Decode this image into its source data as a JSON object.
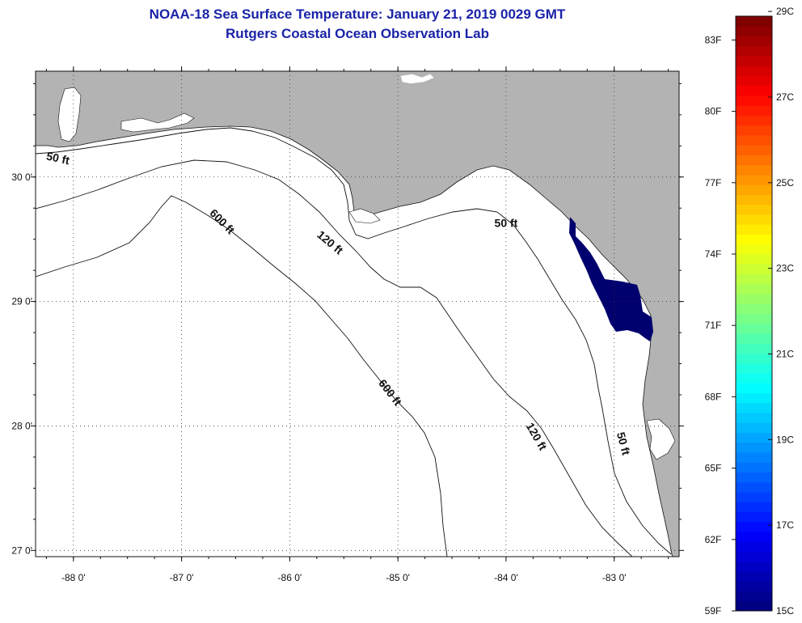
{
  "title": {
    "line1": "NOAA-18 Sea Surface Temperature:  January 21, 2019 0029 GMT",
    "line2": "Rutgers Coastal Ocean Observation Lab"
  },
  "map": {
    "lon_range": [
      -88.35,
      -82.4
    ],
    "lat_range": [
      26.95,
      30.85
    ],
    "lon_ticks": [
      {
        "value": -88,
        "label": "-88 0'"
      },
      {
        "value": -87,
        "label": "-87 0'"
      },
      {
        "value": -86,
        "label": "-86 0'"
      },
      {
        "value": -85,
        "label": "-85 0'"
      },
      {
        "value": -84,
        "label": "-84 0'"
      },
      {
        "value": -83,
        "label": "-83 0'"
      }
    ],
    "lat_ticks": [
      {
        "value": 30,
        "label": "30 0'"
      },
      {
        "value": 29,
        "label": "29 0'"
      },
      {
        "value": 28,
        "label": "28 0'"
      },
      {
        "value": 27,
        "label": "27 0'"
      }
    ],
    "grid": "dotted",
    "land_color": "#b3b3b3",
    "sst_patch_color": "#00006e",
    "contour_labels": [
      {
        "text": "50 ft",
        "lon": -88.15,
        "lat": 30.12
      },
      {
        "text": "600 ft",
        "lon": -86.65,
        "lat": 29.62
      },
      {
        "text": "120 ft",
        "lon": -85.65,
        "lat": 29.45
      },
      {
        "text": "50 ft",
        "lon": -84.0,
        "lat": 29.6
      },
      {
        "text": "600 ft",
        "lon": -85.1,
        "lat": 28.25
      },
      {
        "text": "120 ft",
        "lon": -83.75,
        "lat": 27.9
      },
      {
        "text": "50 ft",
        "lon": -82.95,
        "lat": 27.85
      }
    ]
  },
  "colorbar": {
    "min_f": 59,
    "max_f": 84,
    "colormap": "jet",
    "f_labels": [
      "83F",
      "80F",
      "77F",
      "74F",
      "71F",
      "68F",
      "65F",
      "62F",
      "59F"
    ],
    "c_labels": [
      "29C",
      "27C",
      "25C",
      "23C",
      "21C",
      "19C",
      "17C",
      "15C"
    ]
  }
}
